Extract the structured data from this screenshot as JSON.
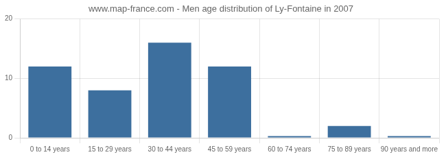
{
  "chart_data": {
    "type": "bar",
    "title": "www.map-france.com - Men age distribution of Ly-Fontaine in 2007",
    "categories": [
      "0 to 14 years",
      "15 to 29 years",
      "30 to 44 years",
      "45 to 59 years",
      "60 to 74 years",
      "75 to 89 years",
      "90 years and more"
    ],
    "values": [
      12,
      8,
      16,
      12,
      0.3,
      2,
      0.3
    ],
    "color": "#3d6f9e",
    "ylim": [
      0,
      20
    ],
    "yticks": [
      0,
      10,
      20
    ],
    "grid": true
  }
}
